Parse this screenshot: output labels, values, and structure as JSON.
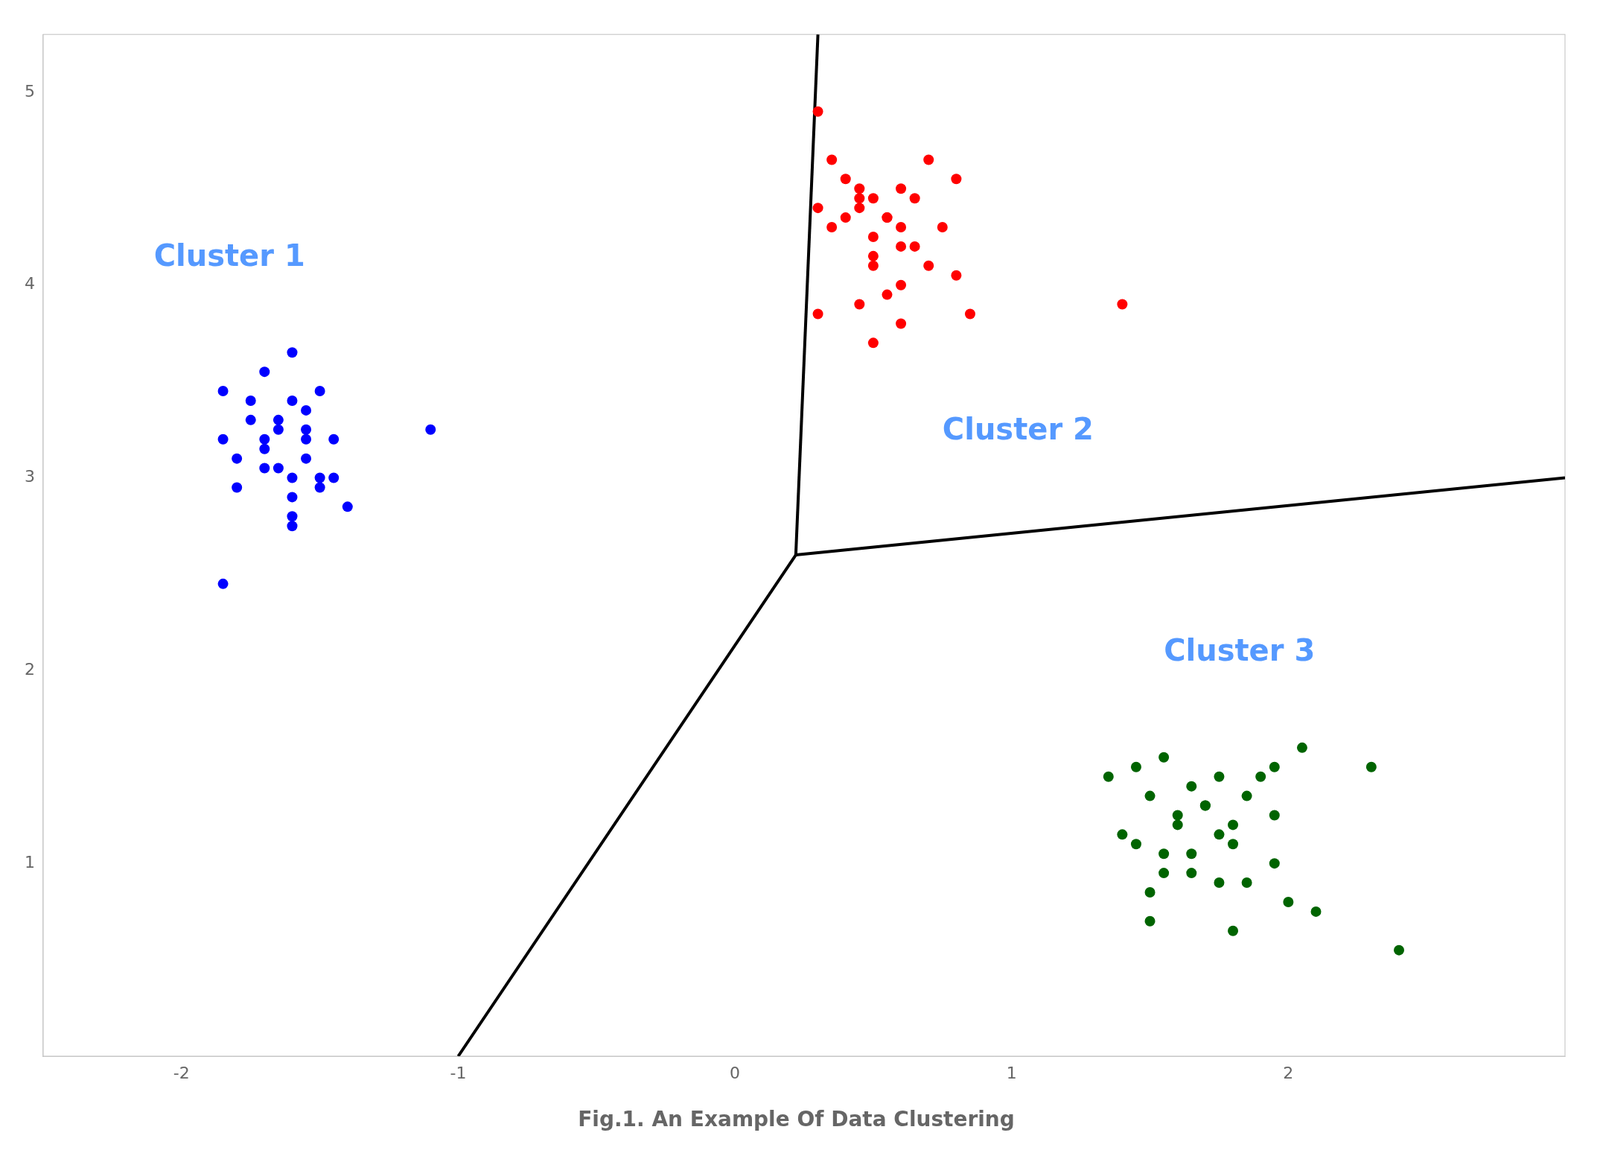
{
  "chart_data": {
    "type": "scatter",
    "title": "Fig.1. An Example Of Data Clustering",
    "xlim": [
      -2.5,
      3.0
    ],
    "ylim": [
      0.0,
      5.3
    ],
    "xticks": [
      -2,
      -1,
      0,
      1,
      2
    ],
    "yticks": [
      1,
      2,
      3,
      4,
      5
    ],
    "grid": false,
    "series": [
      {
        "type": "scatter",
        "color": "#0000FF",
        "x": [
          -1.85,
          -1.7,
          -1.6,
          -1.55,
          -1.5,
          -1.65,
          -1.75,
          -1.8,
          -1.45,
          -1.4,
          -1.6,
          -1.7,
          -1.55,
          -1.65,
          -1.5,
          -1.85,
          -1.6,
          -1.45,
          -1.7,
          -1.75,
          -1.6,
          -1.65,
          -1.55,
          -1.5,
          -1.8,
          -1.6,
          -1.7,
          -1.55,
          -1.6,
          -1.1,
          -1.85
        ],
        "values": [
          3.45,
          3.55,
          3.65,
          3.2,
          3.0,
          3.3,
          3.4,
          2.95,
          3.2,
          2.85,
          2.75,
          3.05,
          3.1,
          3.25,
          3.45,
          3.2,
          2.9,
          3.0,
          3.15,
          3.3,
          3.4,
          3.05,
          3.25,
          2.95,
          3.1,
          3.0,
          3.2,
          3.35,
          2.8,
          3.25,
          2.45
        ]
      },
      {
        "type": "scatter",
        "color": "#FF0000",
        "x": [
          0.3,
          0.35,
          0.45,
          0.5,
          0.55,
          0.4,
          0.3,
          0.6,
          0.7,
          0.8,
          0.5,
          0.55,
          0.45,
          0.6,
          0.65,
          0.35,
          0.6,
          0.5,
          0.45,
          0.4,
          0.5,
          0.6,
          0.65,
          0.75,
          0.3,
          0.55,
          0.7,
          0.8,
          0.45,
          0.85,
          0.6,
          0.5,
          1.4
        ],
        "values": [
          4.9,
          4.65,
          4.5,
          4.45,
          4.35,
          4.55,
          4.4,
          4.3,
          4.65,
          4.55,
          4.25,
          4.35,
          4.4,
          4.5,
          4.45,
          4.3,
          4.2,
          4.15,
          4.45,
          4.35,
          4.1,
          4.0,
          4.2,
          4.3,
          3.85,
          3.95,
          4.1,
          4.05,
          3.9,
          3.85,
          3.8,
          3.7,
          3.9
        ]
      },
      {
        "type": "scatter",
        "color": "#006400",
        "x": [
          1.35,
          1.45,
          1.55,
          1.65,
          1.75,
          1.85,
          1.95,
          2.05,
          1.5,
          1.6,
          1.7,
          1.8,
          1.9,
          1.45,
          1.65,
          1.55,
          1.75,
          1.95,
          1.4,
          1.6,
          1.7,
          1.8,
          1.5,
          2.0,
          2.1,
          1.65,
          1.55,
          1.75,
          1.85,
          1.95,
          1.5,
          1.8,
          2.3,
          2.4
        ],
        "values": [
          1.45,
          1.5,
          1.55,
          1.4,
          1.45,
          1.35,
          1.5,
          1.6,
          1.35,
          1.25,
          1.3,
          1.2,
          1.45,
          1.1,
          1.05,
          0.95,
          0.9,
          1.0,
          1.15,
          1.2,
          1.3,
          1.1,
          0.85,
          0.8,
          0.75,
          0.95,
          1.05,
          1.15,
          0.9,
          1.25,
          0.7,
          0.65,
          1.5,
          0.55
        ]
      },
      {
        "type": "line",
        "color": "black",
        "x": [
          0.22,
          0.3
        ],
        "values": [
          2.6,
          5.3
        ]
      },
      {
        "type": "line",
        "color": "black",
        "x": [
          0.22,
          -1.0
        ],
        "values": [
          2.6,
          0.0
        ]
      },
      {
        "type": "line",
        "color": "black",
        "x": [
          0.22,
          3.0
        ],
        "values": [
          2.6,
          3.0
        ]
      }
    ],
    "annotations": [
      {
        "text": "Cluster 1",
        "x": -2.1,
        "y": 4.1,
        "color": "#5599FF"
      },
      {
        "text": "Cluster 2",
        "x": 0.75,
        "y": 3.2,
        "color": "#5599FF"
      },
      {
        "text": "Cluster 3",
        "x": 1.55,
        "y": 2.05,
        "color": "#5599FF"
      }
    ]
  }
}
